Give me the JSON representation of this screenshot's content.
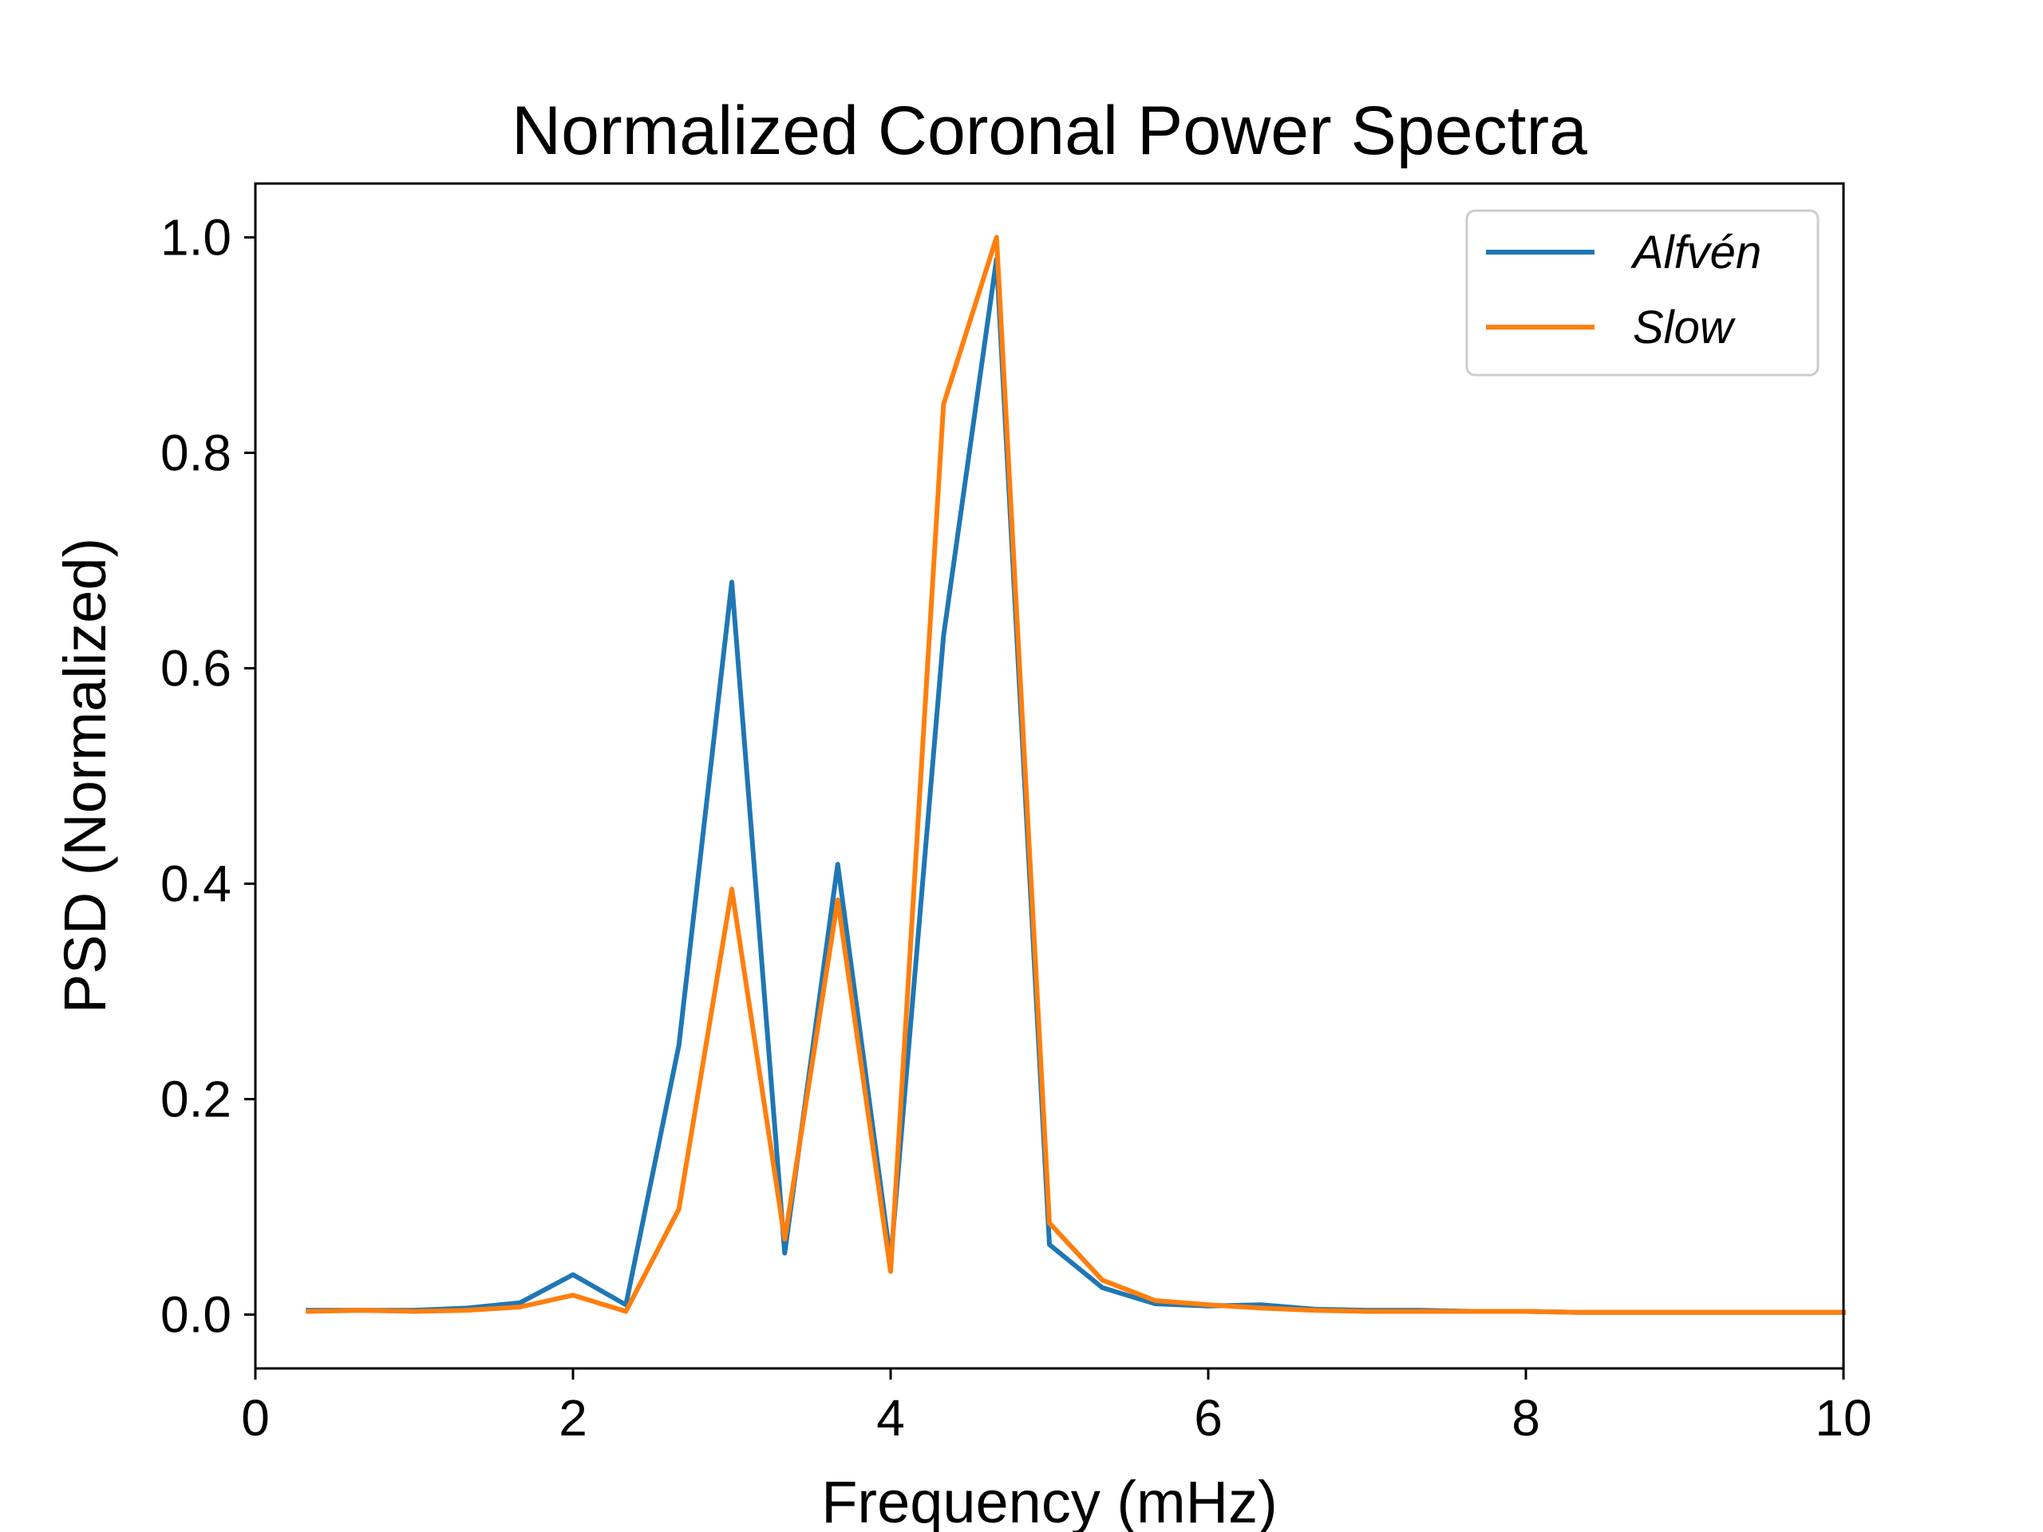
{
  "chart_data": {
    "type": "line",
    "title": "Normalized Coronal Power Spectra",
    "xlabel": "Frequency (mHz)",
    "ylabel": "PSD (Normalized)",
    "xlim": [
      0,
      10
    ],
    "ylim": [
      -0.05,
      1.05
    ],
    "xticks": [
      0,
      2,
      4,
      6,
      8,
      10
    ],
    "xtick_labels": [
      "0",
      "2",
      "4",
      "6",
      "8",
      "10"
    ],
    "yticks": [
      0.0,
      0.2,
      0.4,
      0.6,
      0.8,
      1.0
    ],
    "ytick_labels": [
      "0.0",
      "0.2",
      "0.4",
      "0.6",
      "0.8",
      "1.0"
    ],
    "grid": false,
    "legend_position": "top-right",
    "x": [
      0.333,
      0.667,
      1.0,
      1.333,
      1.667,
      2.0,
      2.333,
      2.667,
      3.0,
      3.333,
      3.667,
      4.0,
      4.333,
      4.667,
      5.0,
      5.333,
      5.667,
      6.0,
      6.333,
      6.667,
      7.0,
      7.333,
      7.667,
      8.0,
      8.333,
      8.667,
      9.0,
      9.333,
      9.667,
      10.0
    ],
    "series": [
      {
        "name": "Alfvén",
        "color": "#1f77b4",
        "values": [
          0.004,
          0.004,
          0.004,
          0.006,
          0.011,
          0.037,
          0.009,
          0.25,
          0.68,
          0.057,
          0.418,
          0.05,
          0.63,
          0.98,
          0.065,
          0.025,
          0.01,
          0.008,
          0.009,
          0.005,
          0.004,
          0.004,
          0.003,
          0.003,
          0.002,
          0.002,
          0.002,
          0.002,
          0.002,
          0.002
        ]
      },
      {
        "name": "Slow",
        "color": "#ff7f0e",
        "values": [
          0.003,
          0.004,
          0.003,
          0.004,
          0.007,
          0.018,
          0.003,
          0.098,
          0.395,
          0.07,
          0.385,
          0.04,
          0.845,
          1.0,
          0.085,
          0.032,
          0.013,
          0.009,
          0.006,
          0.004,
          0.003,
          0.003,
          0.003,
          0.003,
          0.002,
          0.002,
          0.002,
          0.002,
          0.002,
          0.002
        ]
      }
    ]
  }
}
